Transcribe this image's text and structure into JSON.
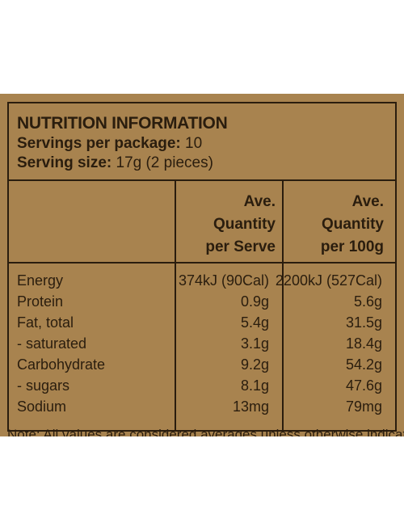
{
  "panel": {
    "title": "NUTRITION INFORMATION",
    "servings_label": "Servings per package:",
    "servings_value": "10",
    "size_label": "Serving size:",
    "size_value": "17g (2 pieces)"
  },
  "columns": {
    "per_serve": [
      "Ave.",
      "Quantity",
      "per Serve"
    ],
    "per_100g": [
      "Ave.",
      "Quantity",
      "per 100g"
    ]
  },
  "rows": [
    {
      "name": "Energy",
      "per_serve": "374kJ (90Cal)",
      "per_100g": "2200kJ (527Cal)"
    },
    {
      "name": "Protein",
      "per_serve": "0.9g",
      "per_100g": "5.6g"
    },
    {
      "name": "Fat, total",
      "per_serve": "5.4g",
      "per_100g": "31.5g"
    },
    {
      "name": "- saturated",
      "per_serve": "3.1g",
      "per_100g": "18.4g"
    },
    {
      "name": "Carbohydrate",
      "per_serve": "9.2g",
      "per_100g": "54.2g"
    },
    {
      "name": "- sugars",
      "per_serve": "8.1g",
      "per_100g": "47.6g"
    },
    {
      "name": "Sodium",
      "per_serve": "13mg",
      "per_100g": "79mg"
    }
  ],
  "note": "Note: All values are considered averages unless otherwise indicated",
  "colors": {
    "panel": "#a8834f",
    "ink": "#2a1d0e",
    "background": "#ffffff"
  }
}
